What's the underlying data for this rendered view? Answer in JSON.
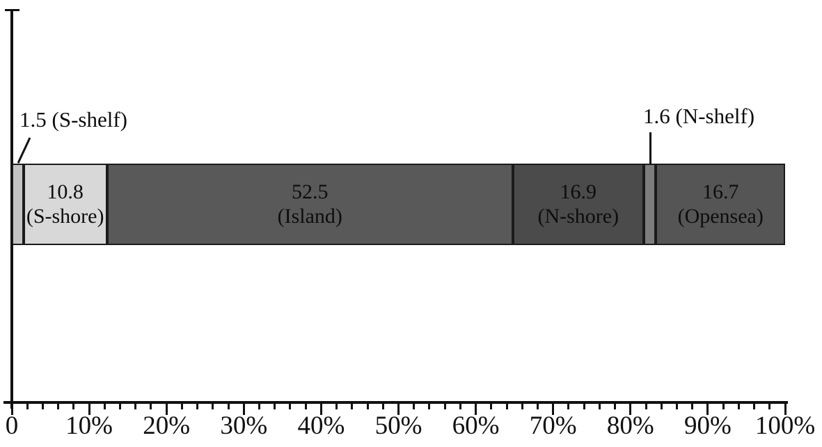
{
  "chart_data": {
    "type": "bar",
    "subtype": "horizontal_stacked_percentage_bar",
    "title": "",
    "xlabel": "",
    "ylabel": "",
    "grid": false,
    "legend": false,
    "categories": [
      "S-shelf",
      "S-shore",
      "Island",
      "N-shore",
      "N-shelf",
      "Opensea"
    ],
    "values": [
      1.5,
      10.8,
      52.5,
      16.9,
      1.6,
      16.7
    ],
    "segments": [
      {
        "id": "s-shelf",
        "value": 1.5,
        "value_label": "1.5",
        "name_label": "(S-shelf)",
        "color": "#c4c4c4",
        "label_placement": "callout"
      },
      {
        "id": "s-shore",
        "value": 10.8,
        "value_label": "10.8",
        "name_label": "(S-shore)",
        "color": "#d8d8d8",
        "label_placement": "inside"
      },
      {
        "id": "island",
        "value": 52.5,
        "value_label": "52.5",
        "name_label": "(Island)",
        "color": "#595959",
        "label_placement": "inside"
      },
      {
        "id": "n-shore",
        "value": 16.9,
        "value_label": "16.9",
        "name_label": "(N-shore)",
        "color": "#4b4b4b",
        "label_placement": "inside"
      },
      {
        "id": "n-shelf",
        "value": 1.6,
        "value_label": "1.6",
        "name_label": "(N-shelf)",
        "color": "#7d7d7d",
        "label_placement": "callout"
      },
      {
        "id": "opensea",
        "value": 16.7,
        "value_label": "16.7",
        "name_label": "(Opensea)",
        "color": "#555555",
        "label_placement": "inside"
      }
    ],
    "annotations": [
      {
        "id": "s-shelf-callout",
        "text": "1.5 (S-shelf)"
      },
      {
        "id": "n-shelf-callout",
        "text": "1.6 (N-shelf)"
      }
    ],
    "xaxis": {
      "min": 0,
      "max": 100,
      "major_step": 10,
      "minor_step": 2,
      "tick_labels": [
        "0",
        "10%",
        "20%",
        "30%",
        "40%",
        "50%",
        "60%",
        "70%",
        "80%",
        "90%",
        "100%"
      ]
    }
  },
  "colors": {
    "background": "#ffffff",
    "axis": "#111111",
    "text": "#0d0d0d",
    "segment_border": "#1b1b1b"
  }
}
